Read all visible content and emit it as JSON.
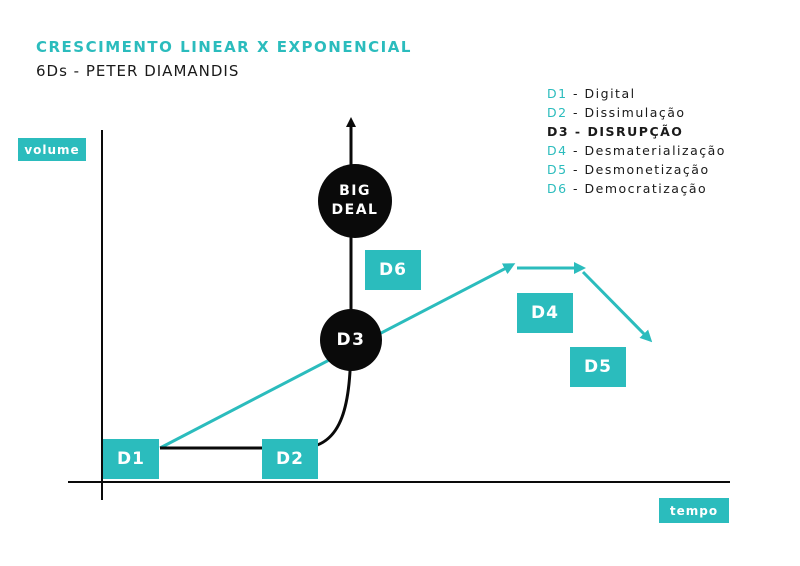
{
  "title": "CRESCIMENTO LINEAR X EXPONENCIAL",
  "subtitle": "6Ds - PETER DIAMANDIS",
  "axes": {
    "y_label": "volume",
    "x_label": "tempo"
  },
  "legend": [
    {
      "code": "D1",
      "name": "Digital",
      "bold": false
    },
    {
      "code": "D2",
      "name": "Dissimulação",
      "bold": false
    },
    {
      "code": "D3",
      "name": "DISRUPÇÃO",
      "bold": true
    },
    {
      "code": "D4",
      "name": "Desmaterialização",
      "bold": false
    },
    {
      "code": "D5",
      "name": "Desmonetização",
      "bold": false
    },
    {
      "code": "D6",
      "name": "Democratização",
      "bold": false
    }
  ],
  "stages": {
    "d1": "D1",
    "d2": "D2",
    "d3": "D3",
    "d4": "D4",
    "d5": "D5",
    "d6": "D6"
  },
  "big_deal": {
    "line1": "BIG",
    "line2": "DEAL"
  },
  "colors": {
    "accent": "#2bbcbd",
    "dark": "#0a0a0a",
    "text": "#1a1a1a"
  }
}
